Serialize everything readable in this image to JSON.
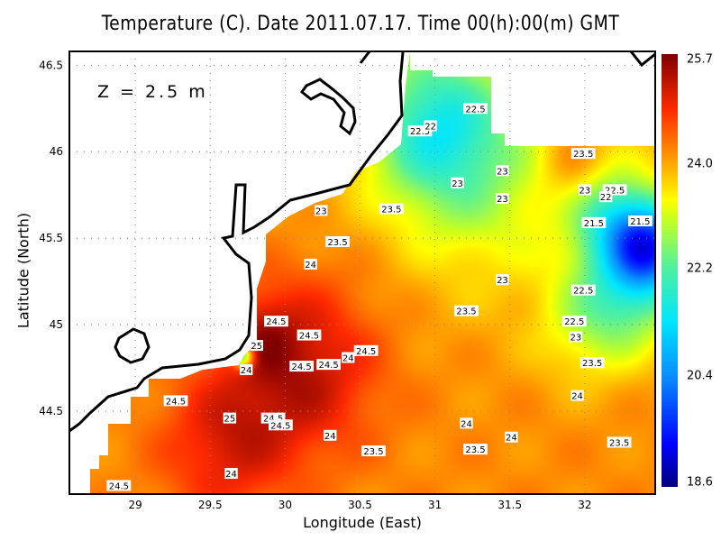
{
  "title": "Temperature (C). Date 2011.07.17. Time 00(h):00(m) GMT",
  "depth_label": "Z = 2.5 m",
  "x_axis": {
    "label": "Longitude (East)",
    "range": [
      28.56,
      32.47
    ],
    "ticks": [
      "29",
      "29.5",
      "30",
      "30.5",
      "31",
      "31.5",
      "32"
    ]
  },
  "y_axis": {
    "label": "Latitude (North)",
    "range": [
      44.02,
      46.58
    ],
    "ticks": [
      "46.5",
      "46",
      "45.5",
      "45",
      "44.5"
    ]
  },
  "colorbar": {
    "min": 18.6,
    "max": 25.7,
    "labels": [
      "25.7",
      "24.0",
      "22.2",
      "20.4",
      "18.6"
    ]
  },
  "colors": {
    "coast": "#000000",
    "grid": "#888888",
    "land": "#ffffff"
  },
  "contour_labels": [
    {
      "t": "22.5",
      "lon": 30.9,
      "lat": 46.12
    },
    {
      "t": "22",
      "lon": 30.97,
      "lat": 46.15
    },
    {
      "t": "22.5",
      "lon": 31.27,
      "lat": 46.25
    },
    {
      "t": "23.5",
      "lon": 31.99,
      "lat": 45.99
    },
    {
      "t": "23",
      "lon": 31.45,
      "lat": 45.89
    },
    {
      "t": "23",
      "lon": 31.15,
      "lat": 45.82
    },
    {
      "t": "23",
      "lon": 31.45,
      "lat": 45.73
    },
    {
      "t": "23",
      "lon": 32.0,
      "lat": 45.78
    },
    {
      "t": "22.5",
      "lon": 32.2,
      "lat": 45.78
    },
    {
      "t": "22",
      "lon": 32.14,
      "lat": 45.74
    },
    {
      "t": "21.5",
      "lon": 32.06,
      "lat": 45.59
    },
    {
      "t": "21.5",
      "lon": 32.37,
      "lat": 45.6
    },
    {
      "t": "23",
      "lon": 30.24,
      "lat": 45.66
    },
    {
      "t": "23.5",
      "lon": 30.71,
      "lat": 45.67
    },
    {
      "t": "23.5",
      "lon": 30.35,
      "lat": 45.48
    },
    {
      "t": "24",
      "lon": 30.17,
      "lat": 45.35
    },
    {
      "t": "23",
      "lon": 31.45,
      "lat": 45.26
    },
    {
      "t": "22.5",
      "lon": 31.99,
      "lat": 45.2
    },
    {
      "t": "23.5",
      "lon": 31.21,
      "lat": 45.08
    },
    {
      "t": "22.5",
      "lon": 31.93,
      "lat": 45.02
    },
    {
      "t": "23",
      "lon": 31.94,
      "lat": 44.93
    },
    {
      "t": "23.5",
      "lon": 32.05,
      "lat": 44.78
    },
    {
      "t": "24.5",
      "lon": 29.94,
      "lat": 45.02
    },
    {
      "t": "24.5",
      "lon": 30.16,
      "lat": 44.94
    },
    {
      "t": "25",
      "lon": 29.81,
      "lat": 44.88
    },
    {
      "t": "24",
      "lon": 30.42,
      "lat": 44.81
    },
    {
      "t": "24.5",
      "lon": 30.54,
      "lat": 44.85
    },
    {
      "t": "24.5",
      "lon": 30.11,
      "lat": 44.76
    },
    {
      "t": "24.5",
      "lon": 30.29,
      "lat": 44.77
    },
    {
      "t": "24",
      "lon": 29.74,
      "lat": 44.74
    },
    {
      "t": "24",
      "lon": 31.95,
      "lat": 44.59
    },
    {
      "t": "24.5",
      "lon": 29.27,
      "lat": 44.56
    },
    {
      "t": "25",
      "lon": 29.63,
      "lat": 44.46
    },
    {
      "t": "24.5",
      "lon": 29.92,
      "lat": 44.46
    },
    {
      "t": "24.5",
      "lon": 29.97,
      "lat": 44.42
    },
    {
      "t": "24",
      "lon": 31.21,
      "lat": 44.43
    },
    {
      "t": "24",
      "lon": 30.3,
      "lat": 44.36
    },
    {
      "t": "24",
      "lon": 31.51,
      "lat": 44.35
    },
    {
      "t": "23.5",
      "lon": 30.59,
      "lat": 44.27
    },
    {
      "t": "23.5",
      "lon": 31.27,
      "lat": 44.28
    },
    {
      "t": "23.5",
      "lon": 32.23,
      "lat": 44.32
    },
    {
      "t": "24.5",
      "lon": 28.89,
      "lat": 44.07
    },
    {
      "t": "24",
      "lon": 29.64,
      "lat": 44.14
    }
  ]
}
